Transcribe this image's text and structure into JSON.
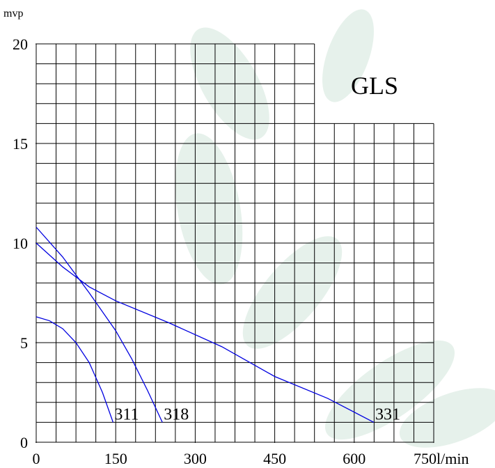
{
  "chart_data": {
    "type": "line",
    "x_label": "l/min",
    "y_label": "mvp",
    "annotation": "GLS",
    "xlim": [
      0,
      750
    ],
    "xticks": [
      0,
      150,
      300,
      450,
      600,
      750
    ],
    "ylim": [
      0,
      20
    ],
    "yticks": [
      0,
      5,
      10,
      15,
      20
    ],
    "grid": true,
    "series": [
      {
        "name": "311",
        "color": "#0000e0",
        "x": [
          0,
          25,
          50,
          75,
          100,
          125,
          145
        ],
        "values": [
          6.3,
          6.1,
          5.7,
          5.0,
          4.0,
          2.5,
          1.0
        ]
      },
      {
        "name": "318",
        "color": "#0000e0",
        "x": [
          0,
          50,
          100,
          150,
          180,
          210,
          238
        ],
        "values": [
          10.8,
          9.3,
          7.5,
          5.6,
          4.2,
          2.6,
          1.0
        ]
      },
      {
        "name": "331",
        "color": "#0000e0",
        "x": [
          0,
          50,
          100,
          150,
          250,
          350,
          450,
          550,
          637
        ],
        "values": [
          10,
          8.8,
          7.8,
          7.1,
          6.0,
          4.8,
          3.3,
          2.2,
          1.0
        ]
      }
    ]
  }
}
